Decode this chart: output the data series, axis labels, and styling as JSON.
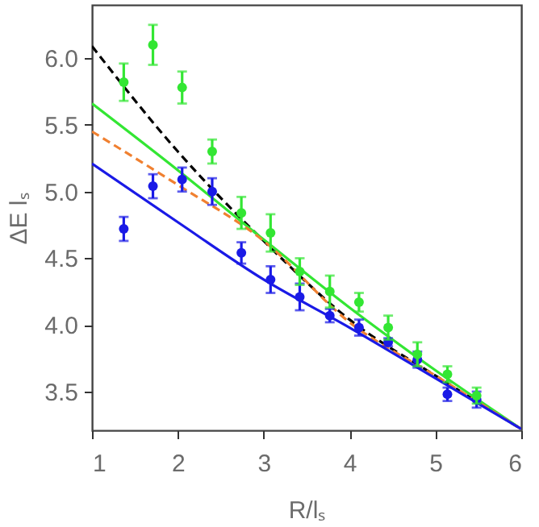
{
  "chart_data": {
    "type": "scatter",
    "xlabel": "R/lₛ",
    "ylabel": "ΔE lₛ",
    "xlim": [
      1,
      6
    ],
    "ylim": [
      3.21,
      6.4
    ],
    "xticks": [
      1,
      2,
      3,
      4,
      5,
      6
    ],
    "yticks": [
      {
        "value": 3.5,
        "label": "3.5"
      },
      {
        "value": 4,
        "label": "4.0"
      },
      {
        "value": 4.5,
        "label": "4.5"
      },
      {
        "value": 5,
        "label": "5.0"
      },
      {
        "value": 5.5,
        "label": "5.5"
      },
      {
        "value": 6,
        "label": "6.0"
      }
    ],
    "grid": false,
    "series": [
      {
        "type": "line",
        "color": "#000000",
        "line_style": "dashed",
        "marker": "none",
        "x": [
          1,
          2,
          3,
          4,
          5,
          6
        ],
        "values": [
          6.09,
          5.3,
          4.63,
          4.04,
          3.62,
          3.22
        ]
      },
      {
        "type": "line",
        "color": "#33e633",
        "line_style": "solid",
        "marker": "none",
        "x": [
          1,
          2,
          3,
          4,
          5,
          6
        ],
        "values": [
          5.66,
          5.16,
          4.64,
          4.13,
          3.66,
          3.22
        ]
      },
      {
        "type": "line",
        "color": "#f08030",
        "line_style": "dashed",
        "marker": "none",
        "x": [
          1,
          2,
          3,
          4,
          5,
          6
        ],
        "values": [
          5.45,
          5.05,
          4.63,
          4.02,
          3.62,
          3.22
        ]
      },
      {
        "type": "line",
        "color": "#1a1ae6",
        "line_style": "solid",
        "marker": "none",
        "x": [
          1,
          2,
          3,
          4,
          5,
          6
        ],
        "values": [
          5.21,
          4.77,
          4.34,
          3.98,
          3.6,
          3.22
        ]
      },
      {
        "color": "#1a1ae6",
        "marker": "circle",
        "x": [
          1.37,
          1.71,
          2.05,
          2.4,
          2.74,
          3.08,
          3.42,
          3.77,
          4.11,
          4.45,
          4.79,
          5.14,
          5.48
        ],
        "values": [
          4.72,
          5.04,
          5.09,
          5.0,
          4.54,
          4.34,
          4.21,
          4.07,
          3.98,
          3.87,
          3.74,
          3.48,
          3.44
        ],
        "errors": [
          0.09,
          0.09,
          0.09,
          0.1,
          0.08,
          0.1,
          0.1,
          0.05,
          0.06,
          0.03,
          0.06,
          0.05,
          0.06
        ]
      },
      {
        "color": "#33e633",
        "marker": "circle",
        "x": [
          1.37,
          1.71,
          2.05,
          2.4,
          2.74,
          3.08,
          3.42,
          3.77,
          4.11,
          4.45,
          4.79,
          5.14,
          5.48
        ],
        "values": [
          5.82,
          6.1,
          5.78,
          5.3,
          4.84,
          4.69,
          4.4,
          4.25,
          4.17,
          3.98,
          3.78,
          3.63,
          3.47
        ],
        "errors": [
          0.14,
          0.15,
          0.12,
          0.09,
          0.12,
          0.14,
          0.1,
          0.12,
          0.07,
          0.09,
          0.09,
          0.06,
          0.06
        ]
      }
    ]
  }
}
